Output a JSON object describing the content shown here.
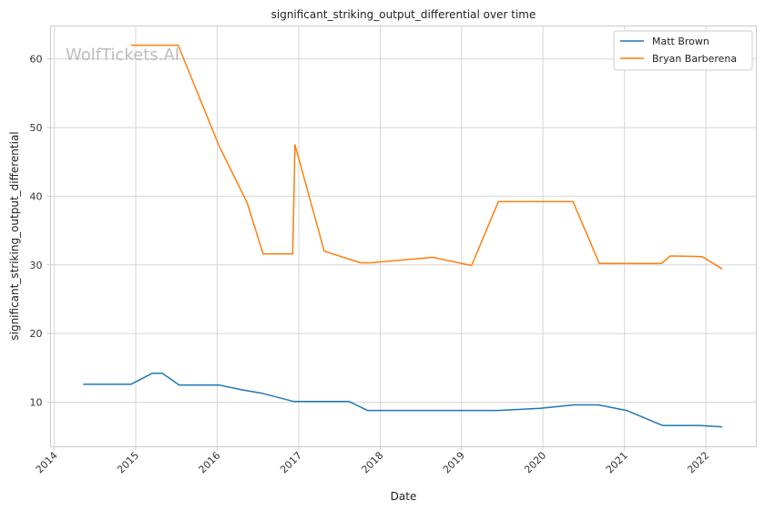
{
  "chart_data": {
    "type": "line",
    "title": "significant_striking_output_differential over time",
    "xlabel": "Date",
    "ylabel": "significant_striking_output_differential",
    "xlim": [
      "2013-12-15",
      "2022-08-15"
    ],
    "ylim": [
      3.5,
      64.8
    ],
    "x_ticks": [
      "2014",
      "2015",
      "2016",
      "2017",
      "2018",
      "2019",
      "2020",
      "2021",
      "2022"
    ],
    "y_ticks": [
      10,
      20,
      30,
      40,
      50,
      60
    ],
    "grid": true,
    "legend_position": "top-right",
    "watermark": "WolfTickets.AI",
    "colors": {
      "Matt Brown": "#1f77b4",
      "Bryan Barberena": "#ff7f0e"
    },
    "series": [
      {
        "name": "Matt Brown",
        "x": [
          "2014-05-10",
          "2014-12-10",
          "2015-03-15",
          "2015-05-01",
          "2015-07-15",
          "2016-01-10",
          "2016-04-20",
          "2016-07-20",
          "2016-12-10",
          "2017-08-15",
          "2017-11-05",
          "2019-06-15",
          "2019-12-20",
          "2020-05-20",
          "2020-09-05",
          "2021-01-10",
          "2021-06-20",
          "2021-12-05",
          "2022-03-15"
        ],
        "y": [
          12.6,
          12.6,
          14.2,
          14.2,
          12.5,
          12.5,
          11.8,
          11.3,
          10.1,
          10.1,
          8.8,
          8.8,
          9.1,
          9.6,
          9.6,
          8.8,
          6.6,
          6.6,
          6.4
        ]
      },
      {
        "name": "Bryan Barberena",
        "x": [
          "2014-12-10",
          "2015-07-10",
          "2016-01-10",
          "2016-05-15",
          "2016-07-25",
          "2016-12-05",
          "2016-12-15",
          "2017-04-25",
          "2017-10-05",
          "2017-11-20",
          "2018-08-25",
          "2019-02-15",
          "2019-06-15",
          "2020-05-15",
          "2020-09-10",
          "2021-06-15",
          "2021-07-25",
          "2021-12-15",
          "2022-03-15"
        ],
        "y": [
          62.0,
          62.0,
          47.3,
          39.0,
          31.6,
          31.6,
          47.5,
          32.0,
          30.3,
          30.3,
          31.1,
          29.9,
          39.2,
          39.2,
          30.2,
          30.2,
          31.3,
          31.2,
          29.4
        ]
      }
    ]
  }
}
